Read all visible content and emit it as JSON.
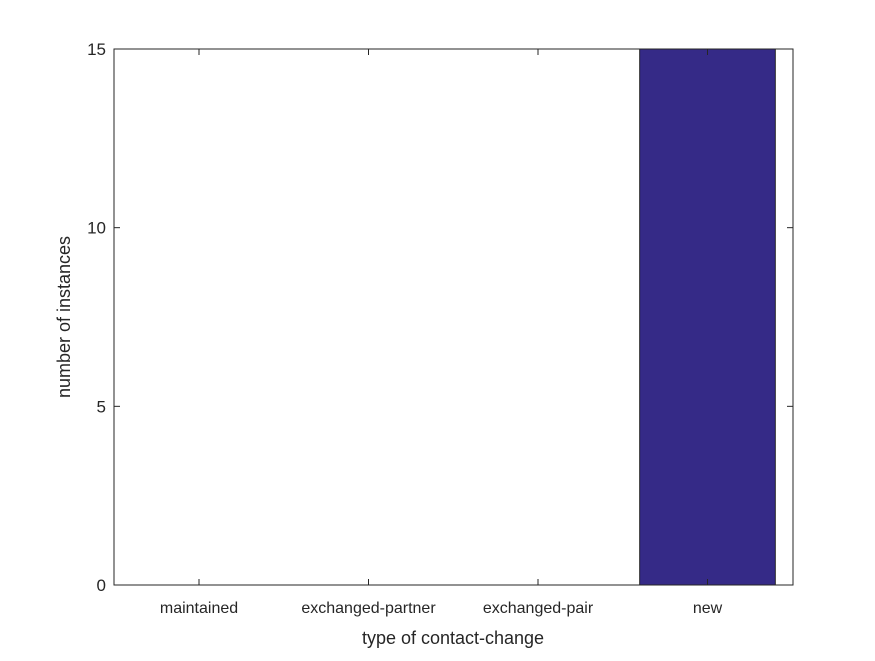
{
  "chart_data": {
    "type": "bar",
    "title": "",
    "xlabel": "type of contact-change",
    "ylabel": "number of instances",
    "categories": [
      "maintained",
      "exchanged-partner",
      "exchanged-pair",
      "new"
    ],
    "values": [
      0,
      0,
      0,
      15
    ],
    "ylim": [
      0,
      15
    ],
    "yticks": [
      0,
      5,
      10,
      15
    ],
    "grid": false,
    "bar_color": "#352a87"
  }
}
